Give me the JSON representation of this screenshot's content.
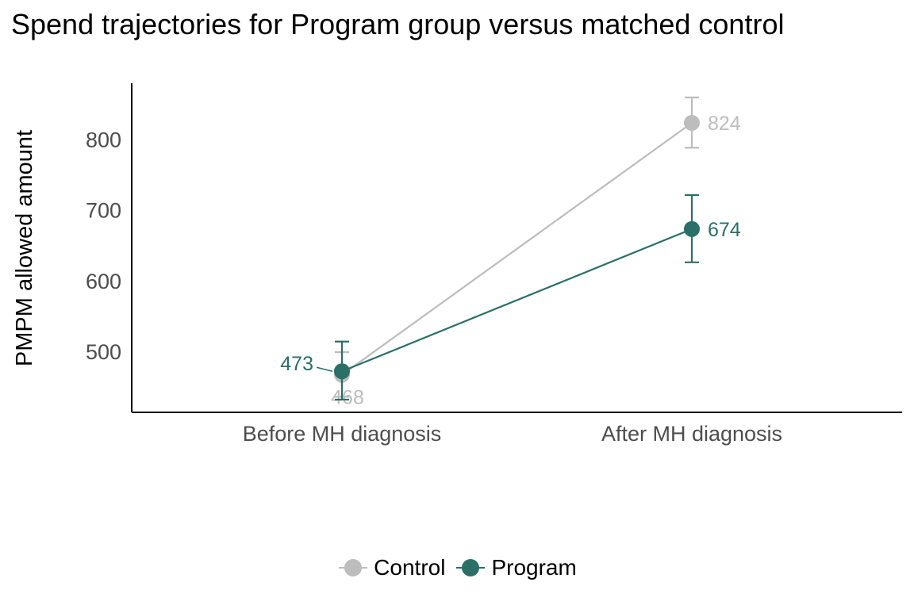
{
  "chart_data": {
    "type": "line",
    "title": "Spend trajectories for Program group versus matched control",
    "xlabel": "",
    "ylabel": "PMPM allowed amount",
    "categories": [
      "Before MH diagnosis",
      "After MH diagnosis"
    ],
    "ylim": [
      415,
      880
    ],
    "yticks": [
      500,
      600,
      700,
      800
    ],
    "grid": false,
    "legend_position": "bottom",
    "series": [
      {
        "name": "Control",
        "color": "#bdbdbd",
        "values": [
          468,
          824
        ],
        "err_low": [
          437,
          789
        ],
        "err_high": [
          500,
          860
        ],
        "labels": [
          "468",
          "824"
        ]
      },
      {
        "name": "Program",
        "color": "#2a6f68",
        "values": [
          473,
          674
        ],
        "err_low": [
          433,
          627
        ],
        "err_high": [
          515,
          722
        ],
        "labels": [
          "473",
          "674"
        ]
      }
    ]
  }
}
